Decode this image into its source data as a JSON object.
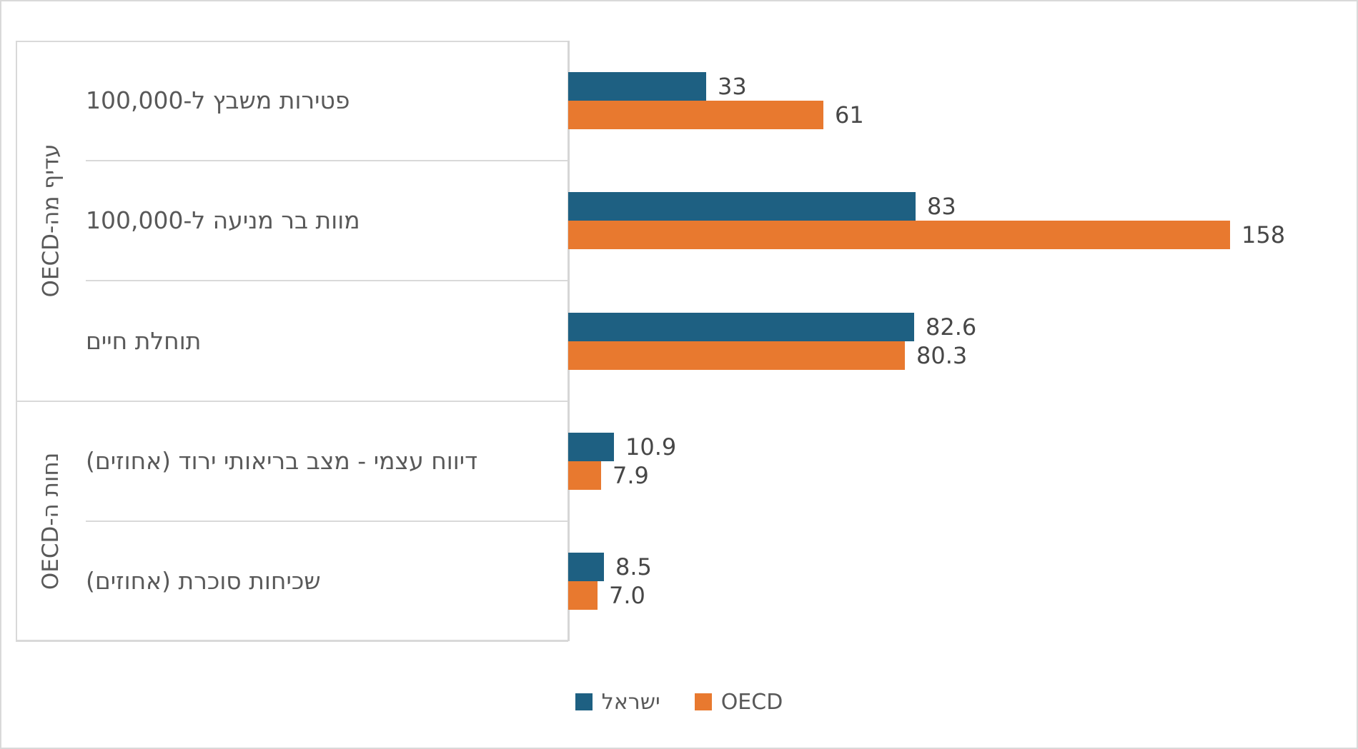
{
  "chart_data": {
    "type": "bar",
    "orientation": "horizontal",
    "title": "",
    "categories": [
      "פטירות משבץ ל-100,000",
      "מוות בר מניעה ל-100,000",
      "תוחלת חיים",
      "דיווח עצמי - מצב בריאותי ירוד (אחוזים)",
      "שכיחות סוכרת (אחוזים)"
    ],
    "series": [
      {
        "name": "ישראל",
        "color": "#1e6082",
        "values": [
          33,
          83,
          82.6,
          10.9,
          8.5
        ],
        "labels": [
          "33",
          "83",
          "82.6",
          "10.9",
          "8.5"
        ]
      },
      {
        "name": "OECD",
        "color": "#e8792f",
        "values": [
          61,
          158,
          80.3,
          7.9,
          7.0
        ],
        "labels": [
          "61",
          "158",
          "80.3",
          "7.9",
          "7.0"
        ]
      }
    ],
    "groups": [
      {
        "label": "עדיף מה-OECD",
        "category_indexes": [
          0,
          1,
          2
        ]
      },
      {
        "label": "נחות ה-OECD",
        "category_indexes": [
          3,
          4
        ]
      }
    ],
    "value_axis": {
      "min": 0,
      "implied_max": 160,
      "ticks_visible": false
    },
    "gridlines": false,
    "data_labels": true,
    "legend_position": "bottom"
  },
  "colors": {
    "israel_bar": "#1e6082",
    "oecd_bar": "#e8792f",
    "label_text": "#595959",
    "value_text": "#474747",
    "panel_lines": "#d9d9d9",
    "background": "#ffffff"
  }
}
